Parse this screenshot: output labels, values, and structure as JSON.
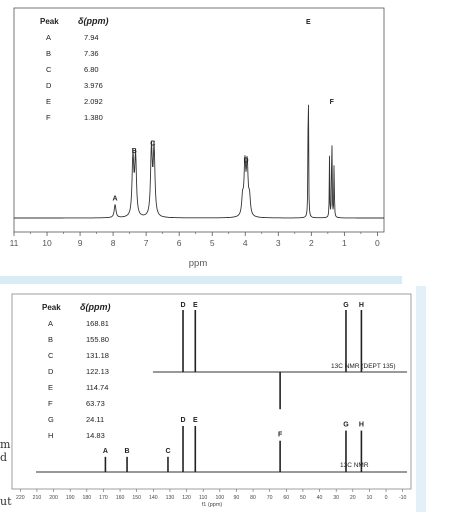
{
  "edge_fragments": [
    "m",
    "d",
    "ut"
  ],
  "chart_data": [
    {
      "type": "line",
      "title": "",
      "xlabel": "ppm",
      "ylabel": "",
      "xlim": [
        11,
        -0.2
      ],
      "x_ticks": [
        11,
        10,
        9,
        8,
        7,
        6,
        5,
        4,
        3,
        2,
        1,
        0
      ],
      "x_tick_labels": [
        "11",
        "10",
        "9",
        "8",
        "7",
        "6",
        "5",
        "4",
        "3",
        "2",
        "1",
        "0"
      ],
      "grid": false,
      "table": {
        "headers": [
          "Peak",
          "δ(ppm)"
        ],
        "rows": [
          [
            "A",
            "7.94"
          ],
          [
            "B",
            "7.36"
          ],
          [
            "C",
            "6.80"
          ],
          [
            "D",
            "3.976"
          ],
          [
            "E",
            "2.092"
          ],
          [
            "F",
            "1.380"
          ]
        ]
      },
      "peaks": [
        {
          "label": "A",
          "shift": 7.94,
          "multiplicity": 1,
          "spacing": 0,
          "height": 0.07
        },
        {
          "label": "B",
          "shift": 7.36,
          "multiplicity": 2,
          "spacing": 0.08,
          "height": 0.32
        },
        {
          "label": "C",
          "shift": 6.8,
          "multiplicity": 2,
          "spacing": 0.08,
          "height": 0.36
        },
        {
          "label": "D",
          "shift": 3.976,
          "multiplicity": 4,
          "spacing": 0.07,
          "height": 0.27
        },
        {
          "label": "E",
          "shift": 2.092,
          "multiplicity": 1,
          "spacing": 0,
          "height": 1.0
        },
        {
          "label": "F",
          "shift": 1.38,
          "multiplicity": 3,
          "spacing": 0.07,
          "height": 0.58
        }
      ]
    },
    {
      "type": "bar",
      "title": "",
      "xlabel": "f1 (ppm)",
      "xlim": [
        225,
        -15
      ],
      "x_ticks": [
        220,
        210,
        200,
        190,
        180,
        170,
        160,
        150,
        140,
        130,
        120,
        110,
        100,
        90,
        80,
        70,
        60,
        50,
        40,
        30,
        20,
        10,
        0,
        -10
      ],
      "x_tick_labels": [
        "220",
        "210",
        "200",
        "190",
        "180",
        "170",
        "160",
        "150",
        "140",
        "130",
        "120",
        "110",
        "100",
        "90",
        "80",
        "70",
        "60",
        "50",
        "40",
        "30",
        "20",
        "10",
        "0",
        "-10"
      ],
      "table": {
        "headers": [
          "Peak",
          "δ(ppm)"
        ],
        "rows": [
          [
            "A",
            "168.81"
          ],
          [
            "B",
            "155.80"
          ],
          [
            "C",
            "131.18"
          ],
          [
            "D",
            "122.13"
          ],
          [
            "E",
            "114.74"
          ],
          [
            "F",
            "63.73"
          ],
          [
            "G",
            "24.11"
          ],
          [
            "H",
            "14.83"
          ]
        ]
      },
      "series": [
        {
          "name": "13C NMR (DEPT 135)",
          "points": [
            {
              "label": "D",
              "shift": 122.13,
              "value": 1
            },
            {
              "label": "E",
              "shift": 114.74,
              "value": 1
            },
            {
              "label": "F",
              "shift": 63.73,
              "value": -0.8
            },
            {
              "label": "G",
              "shift": 24.11,
              "value": 1
            },
            {
              "label": "H",
              "shift": 14.83,
              "value": 1
            }
          ]
        },
        {
          "name": "13C NMR",
          "points": [
            {
              "label": "A",
              "shift": 168.81,
              "value": 0.33
            },
            {
              "label": "B",
              "shift": 155.8,
              "value": 0.33
            },
            {
              "label": "C",
              "shift": 131.18,
              "value": 0.33
            },
            {
              "label": "D",
              "shift": 122.13,
              "value": 1
            },
            {
              "label": "E",
              "shift": 114.74,
              "value": 1
            },
            {
              "label": "F",
              "shift": 63.73,
              "value": 0.68
            },
            {
              "label": "G",
              "shift": 24.11,
              "value": 0.9
            },
            {
              "label": "H",
              "shift": 14.83,
              "value": 0.9
            }
          ]
        }
      ]
    }
  ]
}
